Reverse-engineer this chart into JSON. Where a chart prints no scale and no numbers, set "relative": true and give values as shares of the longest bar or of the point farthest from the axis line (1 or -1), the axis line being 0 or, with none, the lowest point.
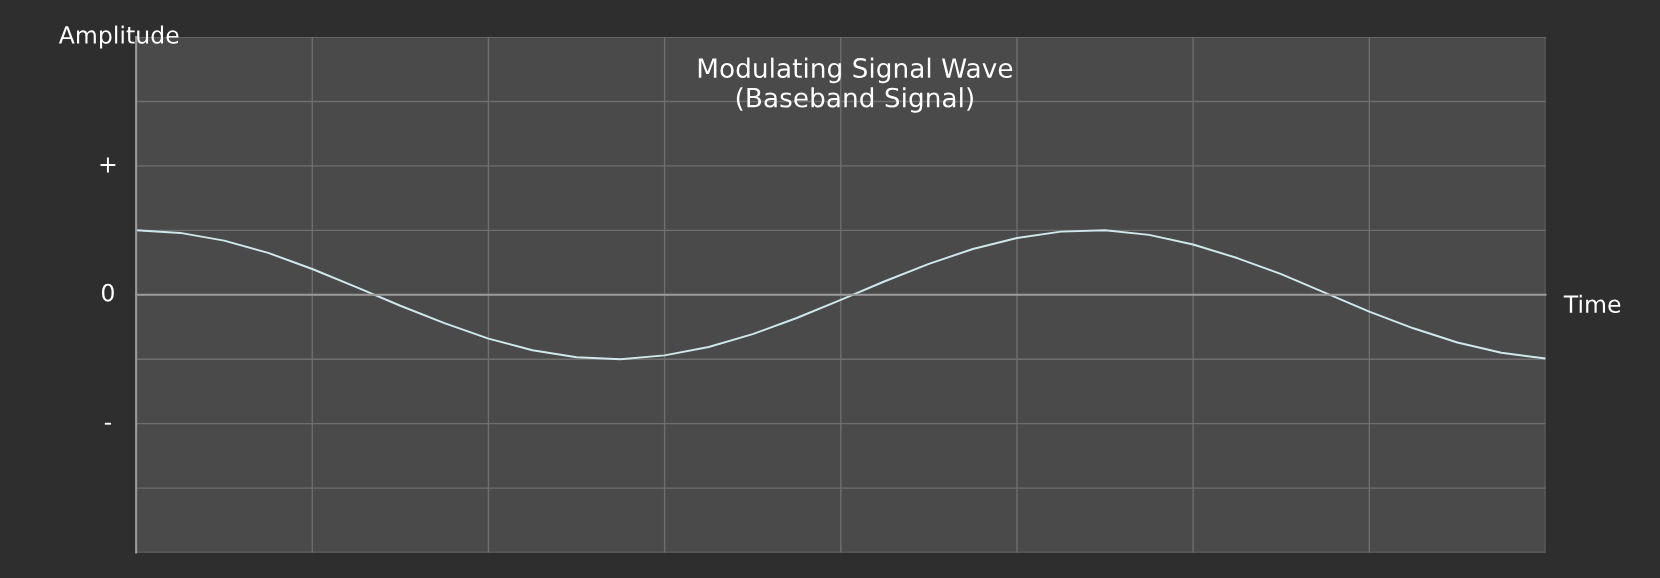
{
  "chart_data": {
    "type": "line",
    "relative": true,
    "title": "Modulating Signal Wave\n(Baseband Signal)",
    "xlabel": "Time",
    "annotations": [
      "Amplitude",
      "+",
      "0",
      "-"
    ],
    "categories": [
      null,
      null,
      null,
      null,
      null,
      null,
      null,
      null,
      null,
      null,
      null,
      null,
      null,
      null,
      null,
      null,
      null,
      null,
      null,
      null,
      null,
      null,
      null,
      null,
      null,
      null,
      null,
      null,
      null,
      null,
      null,
      null,
      null
    ],
    "series": [
      {
        "color": "#cfe8ec",
        "values": [
          1,
          0.96,
          0.84,
          0.65,
          0.4,
          0.12,
          -0.17,
          -0.44,
          -0.68,
          -0.86,
          -0.97,
          -1,
          -0.94,
          -0.81,
          -0.61,
          -0.36,
          -0.08,
          0.21,
          0.48,
          0.71,
          0.88,
          0.98,
          1,
          0.93,
          0.78,
          0.57,
          0.32,
          0.03,
          -0.26,
          -0.52,
          -0.74,
          -0.9,
          -0.99
        ]
      }
    ],
    "grid": true,
    "marker": "none",
    "line_style": "solid"
  }
}
